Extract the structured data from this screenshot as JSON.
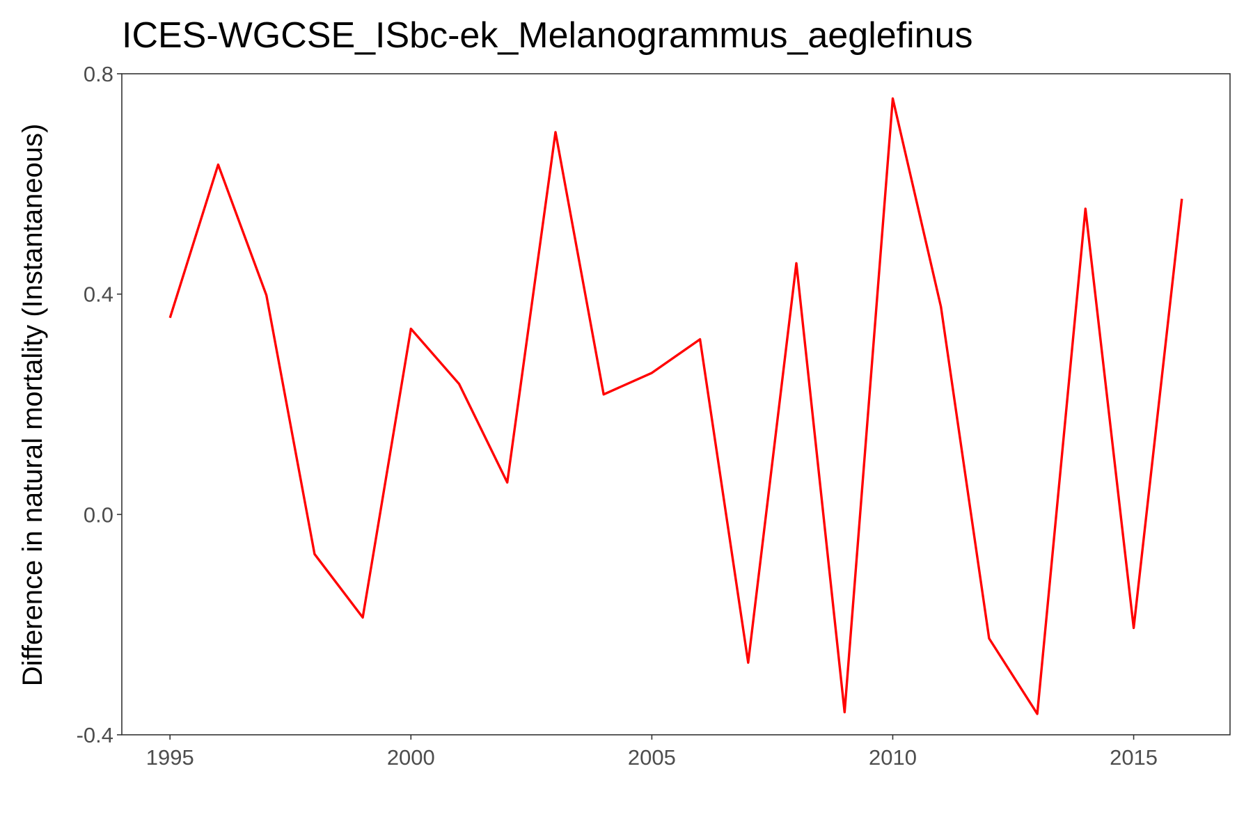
{
  "chart_data": {
    "type": "line",
    "title": "ICES-WGCSE_ISbc-ek_Melanogrammus_aeglefinus",
    "xlabel": "",
    "ylabel": "Difference in natural mortality (Instantaneous)",
    "xlim": [
      1994,
      2017
    ],
    "ylim": [
      -0.4,
      0.8
    ],
    "x_ticks": [
      1995,
      2000,
      2005,
      2010,
      2015
    ],
    "y_ticks": [
      -0.4,
      0.0,
      0.4,
      0.8
    ],
    "y_tick_labels": [
      "-0.4",
      "0.0",
      "0.4",
      "0.8"
    ],
    "grid": false,
    "legend": "none",
    "series": [
      {
        "color": "#ff0000",
        "x": [
          1995,
          1996,
          1997,
          1998,
          1999,
          2000,
          2001,
          2002,
          2003,
          2004,
          2005,
          2006,
          2007,
          2008,
          2009,
          2010,
          2011,
          2012,
          2013,
          2014,
          2015,
          2016
        ],
        "y": [
          0.357,
          0.635,
          0.398,
          -0.072,
          -0.187,
          0.337,
          0.237,
          0.058,
          0.694,
          0.218,
          0.257,
          0.318,
          -0.269,
          0.456,
          -0.359,
          0.755,
          0.377,
          -0.225,
          -0.362,
          0.555,
          -0.206,
          0.573
        ]
      }
    ]
  }
}
